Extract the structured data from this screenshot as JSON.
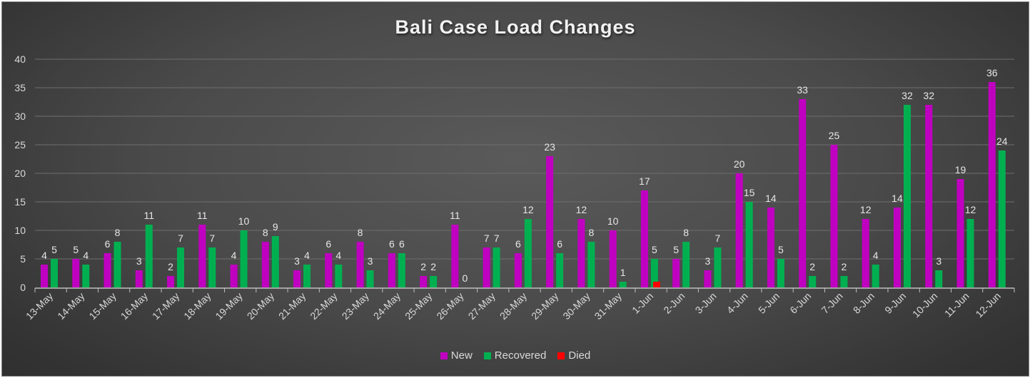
{
  "chart_data": {
    "type": "bar",
    "title": "Bali Case Load Changes",
    "xlabel": "",
    "ylabel": "",
    "ylim": [
      0,
      40
    ],
    "yticks": [
      0,
      5,
      10,
      15,
      20,
      25,
      30,
      35,
      40
    ],
    "grid": true,
    "legend_position": "bottom",
    "categories": [
      "13-May",
      "14-May",
      "15-May",
      "16-May",
      "17-May",
      "18-May",
      "19-May",
      "20-May",
      "21-May",
      "22-May",
      "23-May",
      "24-May",
      "25-May",
      "26-May",
      "27-May",
      "28-May",
      "29-May",
      "30-May",
      "31-May",
      "1-Jun",
      "2-Jun",
      "3-Jun",
      "4-Jun",
      "5-Jun",
      "6-Jun",
      "7-Jun",
      "8-Jun",
      "9-Jun",
      "10-Jun",
      "11-Jun",
      "12-Jun"
    ],
    "series": [
      {
        "name": "New",
        "color": "#c000c0",
        "values": [
          4,
          5,
          6,
          3,
          2,
          11,
          4,
          8,
          3,
          6,
          8,
          6,
          2,
          11,
          7,
          6,
          23,
          12,
          10,
          17,
          5,
          3,
          20,
          14,
          33,
          25,
          12,
          14,
          32,
          19,
          36
        ],
        "labels": [
          "4",
          "5",
          "6",
          "3",
          "2",
          "11",
          "4",
          "8",
          "3",
          "6",
          "8",
          "6",
          "2",
          "11",
          "7",
          "6",
          "23",
          "12",
          "10",
          "17",
          "5",
          "3",
          "20",
          "14",
          "33",
          "25",
          "12",
          "14",
          "32",
          "19",
          "36"
        ]
      },
      {
        "name": "Recovered",
        "color": "#00b050",
        "values": [
          5,
          4,
          8,
          11,
          7,
          7,
          10,
          9,
          4,
          4,
          3,
          6,
          2,
          0,
          7,
          12,
          6,
          8,
          1,
          5,
          8,
          7,
          15,
          5,
          2,
          2,
          4,
          32,
          3,
          12,
          24
        ],
        "labels": [
          "5",
          "4",
          "8",
          "11",
          "7",
          "7",
          "10",
          "9",
          "4",
          "4",
          "3",
          "6",
          "2",
          "0",
          "7",
          "12",
          "6",
          "8",
          "1",
          "5",
          "8",
          "7",
          "15",
          "5",
          "2",
          "2",
          "4",
          "32",
          "3",
          "12",
          "24"
        ]
      },
      {
        "name": "Died",
        "color": "#ff0000",
        "values": [
          0,
          0,
          0,
          0,
          0,
          0,
          0,
          0,
          0,
          0,
          0,
          0,
          0,
          0,
          0,
          0,
          0,
          0,
          0,
          1,
          0,
          0,
          0,
          0,
          0,
          0,
          0,
          0,
          0,
          0,
          0
        ],
        "labels": []
      }
    ]
  }
}
